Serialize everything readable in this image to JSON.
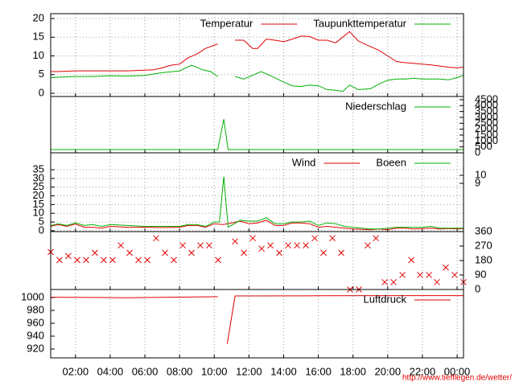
{
  "chart_data": [
    {
      "type": "line",
      "ylim": [
        -0.86,
        21.3
      ],
      "yticks": [
        0,
        5,
        10,
        15,
        20
      ],
      "yaxis": "left",
      "grid": "xy",
      "legend": "top-right",
      "xlim": [
        0.57,
        24.37
      ],
      "xticks": [
        2,
        4,
        6,
        8,
        10,
        12,
        14,
        16,
        18,
        20,
        22,
        24
      ],
      "series": [
        {
          "name": "Temperatur",
          "color": "#e00000",
          "x": [
            0.57,
            1,
            2,
            3,
            4,
            5,
            6,
            6.5,
            7,
            7.5,
            8,
            8.5,
            9,
            9.5,
            10.2,
            10.7,
            11.2,
            11.7,
            12.2,
            12.5,
            13,
            13.5,
            14,
            14.5,
            15,
            15.5,
            16,
            16.5,
            17,
            17.8,
            18.3,
            19,
            19.5,
            20,
            20.5,
            21,
            21.5,
            22,
            22.5,
            23,
            23.5,
            24,
            24.37
          ],
          "values": [
            5.8,
            5.8,
            6,
            6,
            6,
            6,
            6.2,
            6.3,
            6.8,
            7.5,
            7.8,
            9.5,
            10.5,
            12,
            13.2,
            null,
            14.2,
            14.2,
            12,
            12,
            14.5,
            14.2,
            13.8,
            14.5,
            15.3,
            15.2,
            14.2,
            14.2,
            13.5,
            16.5,
            14,
            12.5,
            11.5,
            10,
            8.5,
            8.2,
            8,
            7.8,
            7.6,
            7.3,
            7,
            6.8,
            7
          ]
        },
        {
          "name": "Taupunkttemperatur",
          "color": "#00b000",
          "x": [
            0.57,
            1,
            2,
            3,
            4,
            5,
            6,
            7,
            8,
            8.7,
            9.3,
            9.8,
            10.2,
            10.7,
            11.2,
            11.7,
            12.7,
            13.2,
            14,
            14.5,
            15,
            15.5,
            16,
            16.5,
            17,
            17.4,
            17.8,
            18.3,
            19,
            19.5,
            20,
            20.5,
            21,
            21.5,
            22,
            23,
            23.5,
            24,
            24.37
          ],
          "values": [
            4.2,
            4.3,
            4.5,
            4.5,
            4.7,
            4.6,
            4.8,
            5.5,
            6,
            7.5,
            6.3,
            5.8,
            4.5,
            null,
            4.5,
            3.8,
            5.8,
            4.8,
            3,
            2,
            1.8,
            2.2,
            2,
            1,
            0.8,
            0.5,
            2.2,
            1,
            1.2,
            2.5,
            3.5,
            3.8,
            3.8,
            4,
            3.8,
            3.8,
            3.6,
            4.2,
            4.8
          ]
        }
      ]
    },
    {
      "type": "line",
      "ylim": [
        0,
        4770
      ],
      "yticks": [
        0,
        500,
        1000,
        1500,
        2000,
        2500,
        3000,
        3500,
        4000,
        4500
      ],
      "yaxis": "right",
      "grid": "x",
      "legend": "top-right",
      "xlim": [
        0.57,
        24.37
      ],
      "xticks": [
        2,
        4,
        6,
        8,
        10,
        12,
        14,
        16,
        18,
        20,
        22,
        24
      ],
      "series": [
        {
          "name": "Niederschlag",
          "color": "#00b000",
          "x": [
            0.57,
            10.2,
            10.55,
            10.8,
            24.37
          ],
          "values": [
            270,
            270,
            2850,
            270,
            270
          ]
        }
      ]
    },
    {
      "type": "line",
      "ylim": [
        -0.5,
        44.7
      ],
      "yticks": [
        0,
        5,
        10,
        15,
        20,
        25,
        30,
        35
      ],
      "yaxis": "left",
      "y2lim": [
        3,
        12.8
      ],
      "y2ticks": [
        9,
        10
      ],
      "grid": "xy",
      "legend": "top-right",
      "xlim": [
        0.57,
        24.37
      ],
      "xticks": [
        2,
        4,
        6,
        8,
        10,
        12,
        14,
        16,
        18,
        20,
        22,
        24
      ],
      "series": [
        {
          "name": "Wind",
          "color": "#e00000",
          "x": [
            0.57,
            1,
            1.5,
            2,
            2.5,
            3,
            3.5,
            4,
            5,
            6,
            7,
            8,
            8.5,
            9,
            9.5,
            10,
            10.5,
            11,
            11.5,
            12,
            12.5,
            13,
            13.5,
            14,
            14.5,
            15,
            15.5,
            16,
            16.5,
            17,
            17.5,
            18,
            18.5,
            19,
            19.5,
            20,
            20.5,
            21,
            21.5,
            22,
            22.5,
            23,
            23.5,
            24,
            24.37
          ],
          "values": [
            2.5,
            3.5,
            2.5,
            3.8,
            2,
            2,
            1.5,
            2.5,
            2,
            2,
            1.8,
            2,
            3,
            3,
            2,
            4,
            3.5,
            4.5,
            5.5,
            4,
            4.5,
            6,
            3,
            3,
            4.5,
            4.5,
            4,
            2,
            2.5,
            2,
            1.5,
            1,
            0.8,
            0.5,
            1,
            0.5,
            1.5,
            1.5,
            1,
            1.2,
            1.5,
            1,
            1.2,
            1,
            1.2
          ]
        },
        {
          "name": "Boeen",
          "color": "#00b000",
          "x": [
            0.57,
            1,
            1.5,
            2,
            2.5,
            3,
            3.5,
            4,
            5,
            6,
            7,
            8,
            8.5,
            9,
            9.5,
            10,
            10.3,
            10.55,
            10.8,
            11.5,
            12,
            12.5,
            13,
            13.5,
            14,
            14.5,
            15,
            15.5,
            16,
            16.5,
            17,
            17.5,
            18,
            18.5,
            19,
            19.5,
            20,
            20.5,
            21,
            21.5,
            22,
            22.5,
            23,
            23.5,
            24,
            24.37
          ],
          "values": [
            3,
            4,
            3,
            4.5,
            3,
            3.5,
            2.5,
            3.5,
            3,
            2.5,
            2.5,
            2.5,
            3.5,
            3.5,
            2.5,
            5,
            5,
            31,
            2,
            6,
            5.5,
            5.5,
            7.5,
            4,
            4,
            5,
            5,
            5.5,
            3,
            4.5,
            4,
            2.5,
            2,
            1.5,
            1,
            1,
            1.5,
            2,
            2,
            2,
            2,
            2.5,
            1.5,
            1.5,
            1.5,
            1.5
          ]
        }
      ]
    },
    {
      "type": "scatter",
      "ylim": [
        0,
        360
      ],
      "yticks": [
        0,
        90,
        180,
        270,
        360
      ],
      "yaxis": "right",
      "grid": "x",
      "xlim": [
        0.57,
        24.37
      ],
      "xticks": [
        2,
        4,
        6,
        8,
        10,
        12,
        14,
        16,
        18,
        20,
        22,
        24
      ],
      "series": [
        {
          "color": "#e00000",
          "x": [
            0.57,
            1.08,
            1.59,
            2.1,
            2.61,
            3.12,
            3.63,
            4.14,
            4.61,
            5.12,
            5.63,
            6.14,
            6.65,
            7.16,
            7.67,
            8.18,
            8.69,
            9.2,
            9.71,
            10.22,
            11.2,
            11.71,
            12.22,
            12.73,
            13.24,
            13.75,
            14.26,
            14.77,
            15.28,
            15.79,
            16.3,
            16.81,
            17.32,
            17.83,
            18.34,
            18.85,
            19.32,
            19.83,
            20.34,
            20.85,
            21.36,
            21.87,
            22.38,
            22.84,
            23.35,
            23.86,
            24.37
          ],
          "values": [
            233,
            183,
            208,
            183,
            183,
            228,
            183,
            183,
            274,
            228,
            183,
            183,
            319,
            228,
            183,
            274,
            228,
            274,
            274,
            183,
            299,
            228,
            319,
            254,
            274,
            228,
            274,
            274,
            274,
            319,
            228,
            319,
            228,
            0,
            0,
            274,
            319,
            46,
            46,
            91,
            183,
            91,
            91,
            46,
            137,
            91,
            46
          ]
        }
      ]
    },
    {
      "type": "line",
      "ylim": [
        906.25,
        1012.5
      ],
      "yticks": [
        920,
        940,
        960,
        980,
        1000
      ],
      "yaxis": "left",
      "grid": "x",
      "legend": "top-right",
      "xlim": [
        0.57,
        24.37
      ],
      "xticks": [
        {
          "value": 2,
          "label": "02:00"
        },
        {
          "value": 4,
          "label": "04:00"
        },
        {
          "value": 6,
          "label": "06:00"
        },
        {
          "value": 8,
          "label": "08:00"
        },
        {
          "value": 10,
          "label": "10:00"
        },
        {
          "value": 12,
          "label": "12:00"
        },
        {
          "value": 14,
          "label": "14:00"
        },
        {
          "value": 16,
          "label": "16:00"
        },
        {
          "value": 18,
          "label": "18:00"
        },
        {
          "value": 20,
          "label": "20:00"
        },
        {
          "value": 22,
          "label": "22:00"
        },
        {
          "value": 24,
          "label": "00:00"
        }
      ],
      "series": [
        {
          "name": "Luftdruck",
          "color": "#e00000",
          "x": [
            0.57,
            5,
            10.2,
            10.5,
            10.75,
            11.2,
            16,
            24.37
          ],
          "values": [
            1000.5,
            999.8,
            1001.3,
            null,
            928,
            1002.5,
            1002.8,
            1003
          ]
        }
      ]
    }
  ],
  "footer": "http://www.tiefflegen.de/wetter/"
}
